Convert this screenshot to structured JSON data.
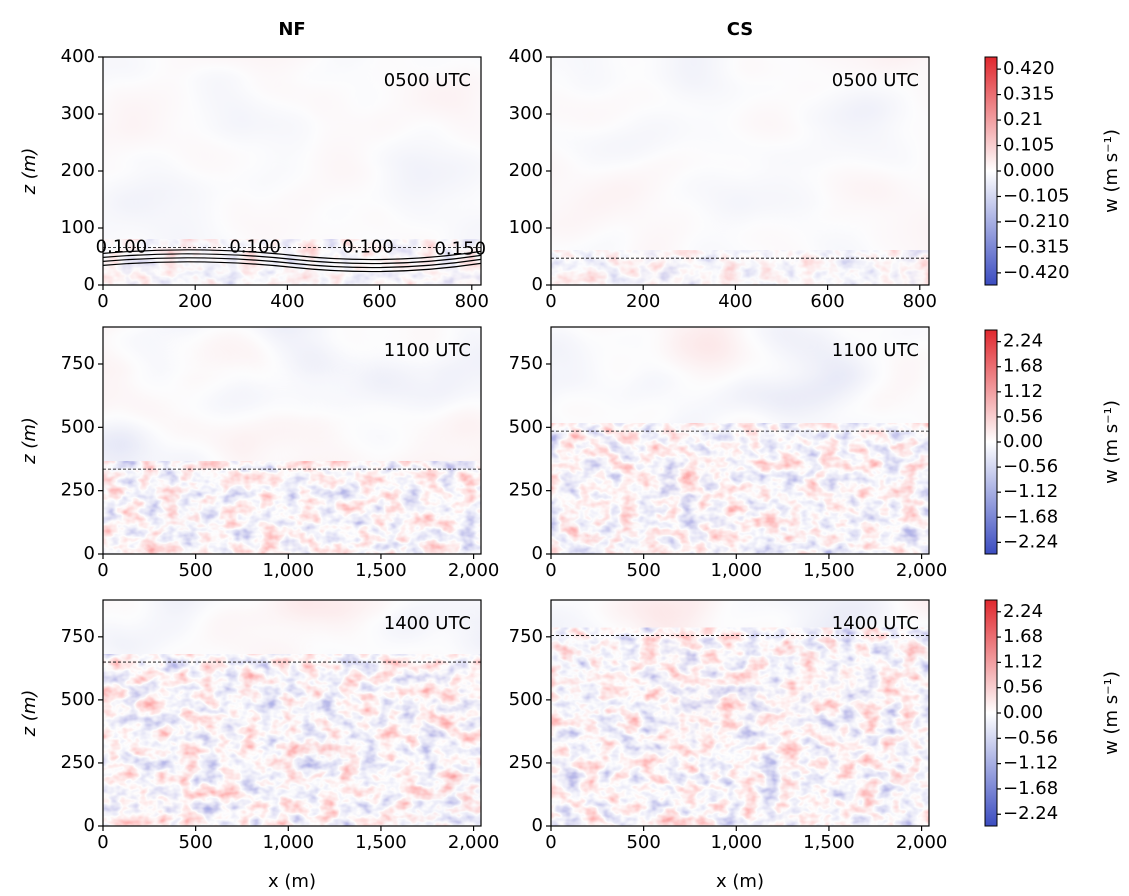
{
  "column_titles": [
    "NF",
    "CS"
  ],
  "chart_data": [
    {
      "type": "heatmap",
      "annotation": "0500 UTC",
      "ylabel": "z (m)",
      "xlim": [
        0,
        820
      ],
      "xticks": [
        0,
        200,
        400,
        600,
        800
      ],
      "ylim": [
        0,
        400
      ],
      "yticks": [
        0,
        100,
        200,
        300,
        400
      ],
      "bl_height": 66,
      "contour_labels": [
        {
          "text": "0.100",
          "x": 40,
          "z": 66
        },
        {
          "text": "0.100",
          "x": 330,
          "z": 66
        },
        {
          "text": "0.100",
          "x": 575,
          "z": 66
        },
        {
          "text": "0.150",
          "x": 775,
          "z": 62
        }
      ]
    },
    {
      "type": "heatmap",
      "annotation": "0500 UTC",
      "xlim": [
        0,
        820
      ],
      "xticks": [
        0,
        200,
        400,
        600,
        800
      ],
      "ylim": [
        0,
        400
      ],
      "yticks": [
        0,
        100,
        200,
        300,
        400
      ],
      "bl_height": 47
    },
    {
      "type": "heatmap",
      "annotation": "1100 UTC",
      "ylabel": "z (m)",
      "xlim": [
        0,
        2040
      ],
      "xticks": [
        0,
        500,
        {
          "value": 1000,
          "label": "1,000"
        },
        {
          "value": 1500,
          "label": "1,500"
        },
        {
          "value": 2000,
          "label": "2,000"
        }
      ],
      "ylim": [
        0,
        896
      ],
      "yticks": [
        0,
        250,
        500,
        750
      ],
      "bl_height": 335
    },
    {
      "type": "heatmap",
      "annotation": "1100 UTC",
      "xlim": [
        0,
        2040
      ],
      "xticks": [
        0,
        500,
        {
          "value": 1000,
          "label": "1,000"
        },
        {
          "value": 1500,
          "label": "1,500"
        },
        {
          "value": 2000,
          "label": "2,000"
        }
      ],
      "ylim": [
        0,
        896
      ],
      "yticks": [
        0,
        250,
        500,
        750
      ],
      "bl_height": 485
    },
    {
      "type": "heatmap",
      "annotation": "1400 UTC",
      "ylabel": "z (m)",
      "xlabel": "x (m)",
      "xlim": [
        0,
        2040
      ],
      "xticks": [
        0,
        500,
        {
          "value": 1000,
          "label": "1,000"
        },
        {
          "value": 1500,
          "label": "1,500"
        },
        {
          "value": 2000,
          "label": "2,000"
        }
      ],
      "ylim": [
        0,
        896
      ],
      "yticks": [
        0,
        250,
        500,
        750
      ],
      "bl_height": 650
    },
    {
      "type": "heatmap",
      "annotation": "1400 UTC",
      "xlabel": "x (m)",
      "xlim": [
        0,
        2040
      ],
      "xticks": [
        0,
        500,
        {
          "value": 1000,
          "label": "1,000"
        },
        {
          "value": 1500,
          "label": "1,500"
        },
        {
          "value": 2000,
          "label": "2,000"
        }
      ],
      "ylim": [
        0,
        896
      ],
      "yticks": [
        0,
        250,
        500,
        750
      ],
      "bl_height": 755
    }
  ],
  "colorbars": [
    {
      "label": "w (m s⁻¹)",
      "lim": [
        -0.47,
        0.47
      ],
      "ticks": [
        {
          "value": 0.42,
          "label": "0.420"
        },
        0.315,
        0.21,
        0.105,
        {
          "value": 0,
          "label": "0.000"
        },
        {
          "value": -0.105,
          "label": "−0.105"
        },
        {
          "value": -0.21,
          "label": "−0.210"
        },
        {
          "value": -0.315,
          "label": "−0.315"
        },
        {
          "value": -0.42,
          "label": "−0.420"
        }
      ]
    },
    {
      "label": "w (m s⁻¹)",
      "lim": [
        -2.5,
        2.5
      ],
      "ticks": [
        2.24,
        1.68,
        1.12,
        0.56,
        {
          "value": 0,
          "label": "0.00"
        },
        {
          "value": -0.56,
          "label": "−0.56"
        },
        {
          "value": -1.12,
          "label": "−1.12"
        },
        {
          "value": -1.68,
          "label": "−1.68"
        },
        {
          "value": -2.24,
          "label": "−2.24"
        }
      ]
    },
    {
      "label": "w (m s⁻¹)",
      "lim": [
        -2.5,
        2.5
      ],
      "ticks": [
        2.24,
        1.68,
        1.12,
        0.56,
        {
          "value": 0,
          "label": "0.00"
        },
        {
          "value": -0.56,
          "label": "−0.56"
        },
        {
          "value": -1.12,
          "label": "−1.12"
        },
        {
          "value": -1.68,
          "label": "−1.68"
        },
        {
          "value": -2.24,
          "label": "−2.24"
        }
      ]
    }
  ]
}
